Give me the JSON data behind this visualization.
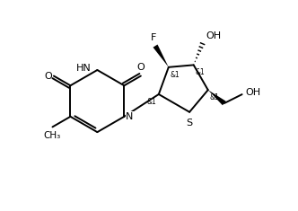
{
  "background": "#ffffff",
  "line_color": "#000000",
  "line_width": 1.4,
  "font_size": 8,
  "small_font_size": 5.5,
  "xlim": [
    0,
    10
  ],
  "ylim": [
    0,
    7
  ],
  "figsize": [
    3.32,
    2.35
  ],
  "dpi": 100
}
